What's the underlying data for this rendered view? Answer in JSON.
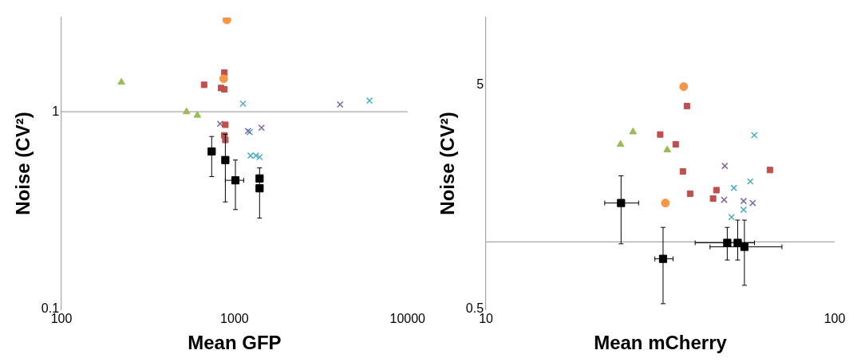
{
  "chart_data": [
    {
      "type": "scatter",
      "xlabel": "Mean GFP",
      "ylabel": "Noise (CV²)",
      "log": "xy",
      "grid": false,
      "legend": false,
      "xlim": [
        100,
        10000
      ],
      "xticks": [
        100,
        1000,
        10000
      ],
      "ylim": [
        0.1,
        3
      ],
      "yticks": [
        0.1,
        1
      ],
      "ref_lines": [
        {
          "axis": "y",
          "value": 1,
          "color": "#a6a6a6"
        }
      ],
      "series": [
        {
          "color": "#9bbb59",
          "marker": "triangle",
          "x": [
            222,
            528,
            610
          ],
          "values": [
            1.41,
            1.0,
            0.96
          ]
        },
        {
          "color": "#f79646",
          "marker": "circle",
          "x": [
            903,
            865
          ],
          "values": [
            2.92,
            1.47
          ]
        },
        {
          "color": "#c0504d",
          "marker": "square",
          "x": [
            667,
            873,
            836,
            873,
            885,
            873,
            885
          ],
          "values": [
            1.37,
            1.58,
            1.32,
            1.3,
            0.86,
            0.76,
            0.72
          ]
        },
        {
          "color": "#8064a2",
          "marker": "cross",
          "x": [
            826,
            1197,
            1432,
            4075
          ],
          "values": [
            0.87,
            0.8,
            0.83,
            1.09
          ]
        },
        {
          "color": "#4bacc6",
          "marker": "cross",
          "x": [
            1120,
            1224,
            1237,
            1330,
            1396,
            6030
          ],
          "values": [
            1.1,
            0.79,
            0.6,
            0.6,
            0.59,
            1.14
          ]
        },
        {
          "color": "#000000",
          "marker": "square",
          "x": [
            738,
            885,
            1012,
            1396,
            1396
          ],
          "values": [
            0.63,
            0.57,
            0.45,
            0.46,
            0.41
          ],
          "errors": [
            [
              0.47,
              0.75
            ],
            [
              0.35,
              0.77
            ],
            [
              0.32,
              0.57
            ],
            [
              0.46,
              0.52
            ],
            [
              0.29,
              0.47
            ]
          ],
          "xerrors": [
            null,
            null,
            [
              885,
              1130
            ],
            null,
            null
          ]
        }
      ]
    },
    {
      "type": "scatter",
      "xlabel": "Mean mCherry",
      "ylabel": "Noise (CV²)",
      "log": "xy",
      "grid": false,
      "legend": false,
      "xlim": [
        10,
        100
      ],
      "xticks": [
        10,
        100
      ],
      "ylim": [
        0.5,
        10
      ],
      "yticks": [
        0.5,
        5
      ],
      "ref_lines": [
        {
          "axis": "y",
          "value": 1,
          "color": "#a6a6a6"
        }
      ],
      "series": [
        {
          "color": "#9bbb59",
          "marker": "triangle",
          "x": [
            24.3,
            26.4,
            33.1
          ],
          "values": [
            2.72,
            3.09,
            2.57
          ]
        },
        {
          "color": "#f79646",
          "marker": "circle",
          "x": [
            36.9,
            32.7
          ],
          "values": [
            4.92,
            1.49
          ]
        },
        {
          "color": "#c0504d",
          "marker": "square",
          "x": [
            31.6,
            35.0,
            37.7,
            36.7,
            38.5,
            45.8,
            44.8,
            65.2
          ],
          "values": [
            3.01,
            2.72,
            4.03,
            2.06,
            1.64,
            1.7,
            1.56,
            2.09
          ]
        },
        {
          "color": "#8064a2",
          "marker": "cross",
          "x": [
            48.4,
            48.2,
            54.8,
            58.2
          ],
          "values": [
            2.18,
            1.54,
            1.52,
            1.49
          ]
        },
        {
          "color": "#4bacc6",
          "marker": "cross",
          "x": [
            58.8,
            51.4,
            57.3,
            54.8,
            50.6
          ],
          "values": [
            2.99,
            1.74,
            1.86,
            1.39,
            1.29
          ]
        },
        {
          "color": "#000000",
          "marker": "square",
          "x": [
            24.4,
            32.2,
            49.2,
            52.7,
            55.1
          ],
          "values": [
            1.49,
            0.84,
            0.99,
            0.99,
            0.95
          ],
          "errors": [
            [
              0.98,
              1.97
            ],
            [
              0.53,
              1.16
            ],
            [
              0.83,
              1.16
            ],
            [
              0.83,
              1.25
            ],
            [
              0.64,
              1.25
            ]
          ],
          "xerrors": [
            [
              21.9,
              27.4
            ],
            [
              30.5,
              34.4
            ],
            [
              39.8,
              58.9
            ],
            null,
            [
              43.9,
              70.6
            ]
          ]
        }
      ]
    }
  ]
}
